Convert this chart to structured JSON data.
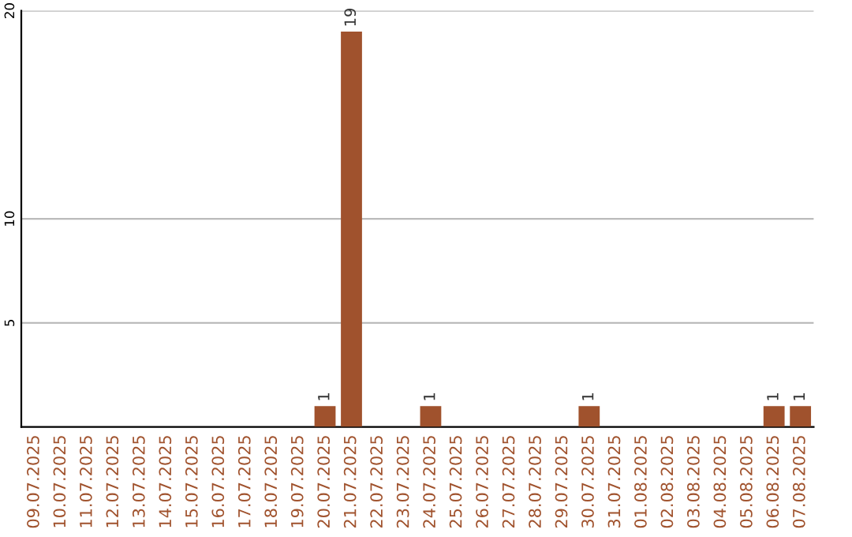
{
  "chart_data": {
    "type": "bar",
    "categories": [
      "09.07.2025",
      "10.07.2025",
      "11.07.2025",
      "12.07.2025",
      "13.07.2025",
      "14.07.2025",
      "15.07.2025",
      "16.07.2025",
      "17.07.2025",
      "18.07.2025",
      "19.07.2025",
      "20.07.2025",
      "21.07.2025",
      "22.07.2025",
      "23.07.2025",
      "24.07.2025",
      "25.07.2025",
      "26.07.2025",
      "27.07.2025",
      "28.07.2025",
      "29.07.2025",
      "30.07.2025",
      "31.07.2025",
      "01.08.2025",
      "02.08.2025",
      "03.08.2025",
      "04.08.2025",
      "05.08.2025",
      "06.08.2025",
      "07.08.2025"
    ],
    "values": [
      0,
      0,
      0,
      0,
      0,
      0,
      0,
      0,
      0,
      0,
      0,
      1,
      19,
      0,
      0,
      1,
      0,
      0,
      0,
      0,
      0,
      1,
      0,
      0,
      0,
      0,
      0,
      0,
      1,
      1
    ],
    "value_labels": [
      null,
      null,
      null,
      null,
      null,
      null,
      null,
      null,
      null,
      null,
      null,
      "1",
      "19",
      null,
      null,
      "1",
      null,
      null,
      null,
      null,
      null,
      "1",
      null,
      null,
      null,
      null,
      null,
      null,
      "1",
      "1"
    ],
    "color": "#a0522d",
    "ylim": [
      0,
      20
    ],
    "yticks": [
      5,
      10,
      20
    ],
    "grid": "y"
  }
}
